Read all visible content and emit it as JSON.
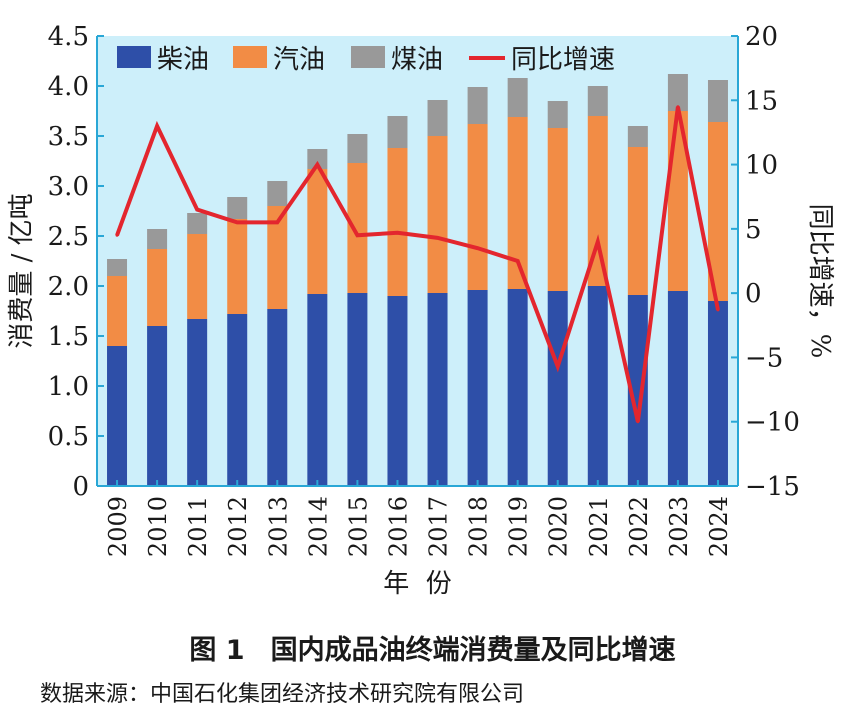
{
  "chart_data": {
    "type": "bar",
    "stacked": true,
    "categories": [
      "2009",
      "2010",
      "2011",
      "2012",
      "2013",
      "2014",
      "2015",
      "2016",
      "2017",
      "2018",
      "2019",
      "2020",
      "2021",
      "2022",
      "2023",
      "2024"
    ],
    "series": [
      {
        "name": "柴油",
        "color": "#2e4fa8",
        "axis": "left",
        "values": [
          1.4,
          1.6,
          1.67,
          1.72,
          1.77,
          1.92,
          1.93,
          1.9,
          1.93,
          1.96,
          1.97,
          1.95,
          2.0,
          1.91,
          1.95,
          1.85
        ]
      },
      {
        "name": "汽油",
        "color": "#f28c45",
        "axis": "left",
        "values": [
          0.7,
          0.77,
          0.85,
          0.95,
          1.03,
          1.25,
          1.3,
          1.48,
          1.57,
          1.66,
          1.72,
          1.63,
          1.7,
          1.48,
          1.8,
          1.79
        ]
      },
      {
        "name": "煤油",
        "color": "#999999",
        "axis": "left",
        "values": [
          0.17,
          0.2,
          0.21,
          0.22,
          0.25,
          0.2,
          0.29,
          0.32,
          0.36,
          0.37,
          0.39,
          0.27,
          0.3,
          0.21,
          0.37,
          0.42
        ]
      },
      {
        "name": "同比增速",
        "type": "line",
        "color": "#e3262e",
        "axis": "right",
        "values": [
          4.5,
          13.0,
          6.5,
          5.5,
          5.5,
          10.0,
          4.5,
          4.7,
          4.3,
          3.5,
          2.5,
          -5.7,
          4.0,
          -10.0,
          14.5,
          -1.3
        ]
      }
    ],
    "title": "国内成品油终端消费量及同比增速",
    "xlabel": "年  份",
    "ylabel": "消费量 / 亿吨",
    "y2label": "同比增速，%",
    "ylim": [
      0,
      4.5
    ],
    "y2lim": [
      -15,
      20
    ],
    "yticks": [
      "0",
      "0.5",
      "1.0",
      "1.5",
      "2.0",
      "2.5",
      "3.0",
      "3.5",
      "4.0",
      "4.5"
    ],
    "y2ticks": [
      "−15",
      "−10",
      "−5",
      "0",
      "5",
      "10",
      "15",
      "20"
    ],
    "background": "#cdeffa",
    "axis_color": "#29a7d6",
    "legend_position": "top-left"
  },
  "caption": {
    "number": "图 1",
    "text": "国内成品油终端消费量及同比增速"
  },
  "source": "数据来源：中国石化集团经济技术研究院有限公司"
}
